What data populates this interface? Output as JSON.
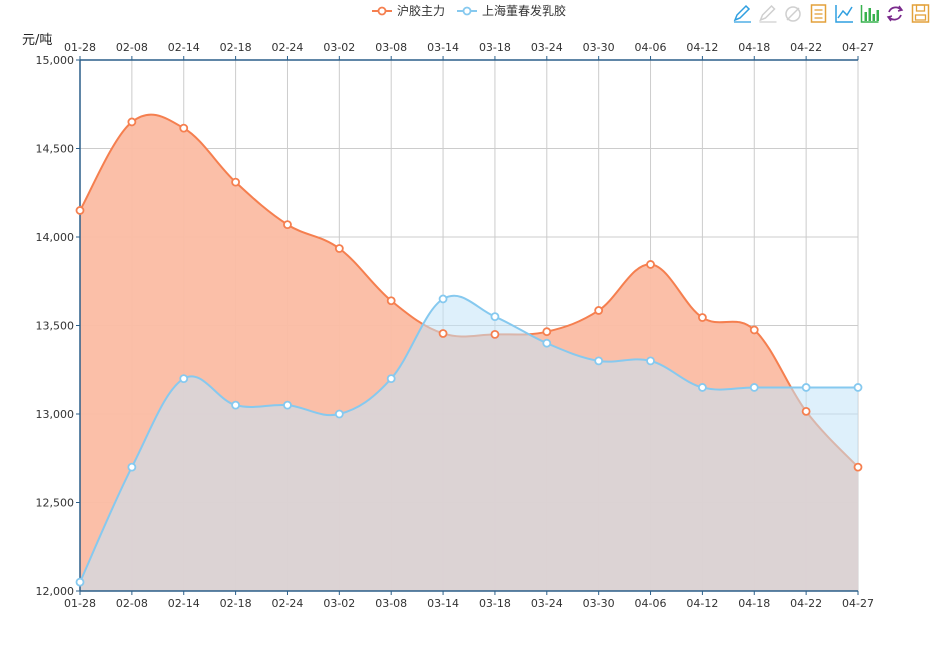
{
  "toolbar": {
    "items": [
      {
        "name": "mark-icon",
        "color": "#2f9fe0"
      },
      {
        "name": "mark-undo-icon",
        "color": "#cfcfcf"
      },
      {
        "name": "mark-clear-icon",
        "color": "#cfcfcf"
      },
      {
        "name": "data-view-icon",
        "color": "#e3a13a"
      },
      {
        "name": "line-chart-icon",
        "color": "#2f9fe0"
      },
      {
        "name": "bar-chart-icon",
        "color": "#37b24d"
      },
      {
        "name": "restore-icon",
        "color": "#7a2a8c"
      },
      {
        "name": "save-image-icon",
        "color": "#e3a13a"
      }
    ]
  },
  "chart_data": {
    "type": "area",
    "ylabel": "元/吨",
    "ylim": [
      12000,
      15000
    ],
    "ytick_values": [
      12000,
      12500,
      13000,
      13500,
      14000,
      14500,
      15000
    ],
    "ytick_labels": [
      "12,000",
      "12,500",
      "13,000",
      "13,500",
      "14,000",
      "14,500",
      "15,000"
    ],
    "xtick_labels": [
      "01-28",
      "02-08",
      "02-14",
      "02-18",
      "02-24",
      "03-02",
      "03-08",
      "03-14",
      "03-18",
      "03-24",
      "03-30",
      "04-06",
      "04-12",
      "04-18",
      "04-22",
      "04-27"
    ],
    "grid": true,
    "legend_position": "top-center",
    "colors": {
      "axis": "#2b5f8a",
      "grid": "#cccccc",
      "series1_line": "#f57f4f",
      "series1_fill": "#fbbca3",
      "series2_line": "#86c9ef",
      "series2_fill": "#c2e4f7",
      "overlap_fill": "#dcb3a7"
    },
    "series": [
      {
        "name": "沪胶主力",
        "values": [
          14150,
          14650,
          14615,
          14310,
          14070,
          13935,
          13640,
          13455,
          13450,
          13465,
          13585,
          13845,
          13545,
          13475,
          13015,
          12700
        ]
      },
      {
        "name": "上海董春发乳胶",
        "values": [
          12050,
          12700,
          13200,
          13050,
          13050,
          13000,
          13200,
          13650,
          13550,
          13400,
          13300,
          13300,
          13150,
          13150,
          13150,
          13150
        ]
      }
    ]
  }
}
